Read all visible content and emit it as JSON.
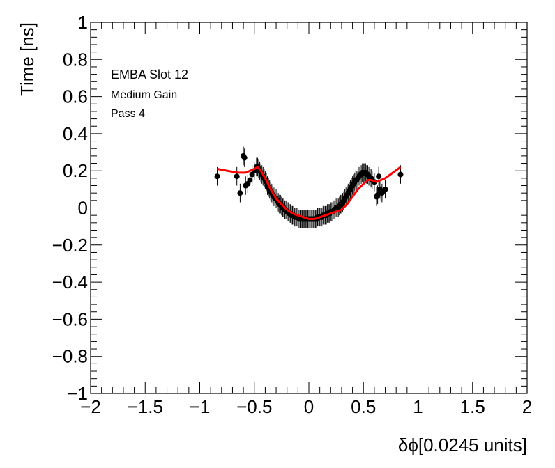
{
  "chart_data": {
    "type": "scatter",
    "title": "",
    "xlabel": "δϕ[0.0245 units]",
    "ylabel": "Time [ns]",
    "xlim": [
      -2,
      2
    ],
    "ylim": [
      -1,
      1
    ],
    "x_ticks": [
      -2,
      -1.5,
      -1,
      -0.5,
      0,
      0.5,
      1,
      1.5,
      2
    ],
    "x_tick_labels": [
      "−2",
      "−1.5",
      "−1",
      "−0.5",
      "0",
      "0.5",
      "1",
      "1.5",
      "2"
    ],
    "y_ticks": [
      -1,
      -0.8,
      -0.6,
      -0.4,
      -0.2,
      0,
      0.2,
      0.4,
      0.6,
      0.8,
      1
    ],
    "y_tick_labels": [
      "−1",
      "−0.8",
      "−0.6",
      "−0.4",
      "−0.2",
      "0",
      "0.2",
      "0.4",
      "0.6",
      "0.8",
      "1"
    ],
    "annotations": [
      "EMBA Slot 12",
      "Medium Gain",
      "Pass 4"
    ],
    "grid": false,
    "series": [
      {
        "kind": "points-with-errorbars",
        "color": "#000000",
        "error": 0.05,
        "x": [
          -0.84,
          -0.66,
          -0.63,
          -0.6,
          -0.59,
          -0.58,
          -0.56,
          -0.54,
          -0.52,
          -0.5,
          -0.48,
          -0.47,
          -0.46,
          -0.45,
          -0.44,
          -0.43,
          -0.42,
          -0.41,
          -0.4,
          -0.39,
          -0.38,
          -0.37,
          -0.36,
          -0.35,
          -0.34,
          -0.33,
          -0.32,
          -0.31,
          -0.3,
          -0.29,
          -0.28,
          -0.27,
          -0.26,
          -0.25,
          -0.24,
          -0.23,
          -0.22,
          -0.21,
          -0.2,
          -0.19,
          -0.18,
          -0.17,
          -0.16,
          -0.15,
          -0.14,
          -0.13,
          -0.12,
          -0.11,
          -0.1,
          -0.09,
          -0.08,
          -0.07,
          -0.06,
          -0.05,
          -0.04,
          -0.03,
          -0.02,
          -0.01,
          0,
          0.01,
          0.02,
          0.03,
          0.04,
          0.05,
          0.06,
          0.07,
          0.08,
          0.09,
          0.1,
          0.11,
          0.12,
          0.13,
          0.14,
          0.15,
          0.16,
          0.17,
          0.18,
          0.19,
          0.2,
          0.21,
          0.22,
          0.23,
          0.24,
          0.25,
          0.26,
          0.27,
          0.28,
          0.29,
          0.3,
          0.31,
          0.32,
          0.33,
          0.34,
          0.35,
          0.36,
          0.37,
          0.38,
          0.39,
          0.4,
          0.41,
          0.42,
          0.43,
          0.44,
          0.45,
          0.46,
          0.47,
          0.48,
          0.49,
          0.5,
          0.51,
          0.52,
          0.53,
          0.54,
          0.55,
          0.56,
          0.57,
          0.58,
          0.6,
          0.62,
          0.63,
          0.64,
          0.65,
          0.66,
          0.67,
          0.68,
          0.7,
          0.84
        ],
        "y": [
          0.17,
          0.17,
          0.08,
          0.28,
          0.27,
          0.12,
          0.13,
          0.15,
          0.18,
          0.2,
          0.22,
          0.22,
          0.21,
          0.2,
          0.19,
          0.18,
          0.17,
          0.16,
          0.15,
          0.14,
          0.12,
          0.11,
          0.1,
          0.09,
          0.08,
          0.07,
          0.06,
          0.05,
          0.05,
          0.04,
          0.03,
          0.02,
          0.02,
          0.01,
          0.0,
          0.0,
          -0.01,
          -0.01,
          -0.02,
          -0.02,
          -0.03,
          -0.03,
          -0.04,
          -0.04,
          -0.04,
          -0.05,
          -0.05,
          -0.05,
          -0.05,
          -0.06,
          -0.06,
          -0.06,
          -0.06,
          -0.06,
          -0.06,
          -0.06,
          -0.06,
          -0.06,
          -0.06,
          -0.06,
          -0.06,
          -0.06,
          -0.06,
          -0.06,
          -0.06,
          -0.06,
          -0.05,
          -0.05,
          -0.05,
          -0.05,
          -0.05,
          -0.04,
          -0.04,
          -0.04,
          -0.04,
          -0.03,
          -0.03,
          -0.03,
          -0.02,
          -0.02,
          -0.02,
          -0.01,
          -0.01,
          0.0,
          0.0,
          0.0,
          0.01,
          0.02,
          0.02,
          0.03,
          0.04,
          0.05,
          0.06,
          0.07,
          0.08,
          0.09,
          0.1,
          0.11,
          0.12,
          0.13,
          0.14,
          0.15,
          0.15,
          0.16,
          0.17,
          0.18,
          0.18,
          0.19,
          0.19,
          0.19,
          0.19,
          0.18,
          0.18,
          0.17,
          0.16,
          0.16,
          0.15,
          0.14,
          0.06,
          0.07,
          0.17,
          0.1,
          0.09,
          0.08,
          0.09,
          0.1,
          0.18
        ]
      },
      {
        "kind": "fit-line",
        "color": "#ff0000",
        "x": [
          -0.84,
          -0.75,
          -0.65,
          -0.58,
          -0.54,
          -0.5,
          -0.47,
          -0.44,
          -0.4,
          -0.35,
          -0.3,
          -0.25,
          -0.2,
          -0.15,
          -0.1,
          -0.05,
          0,
          0.05,
          0.1,
          0.15,
          0.2,
          0.25,
          0.3,
          0.35,
          0.4,
          0.45,
          0.5,
          0.54,
          0.57,
          0.62,
          0.7,
          0.77,
          0.84
        ],
        "y": [
          0.21,
          0.2,
          0.19,
          0.19,
          0.2,
          0.21,
          0.22,
          0.2,
          0.16,
          0.1,
          0.05,
          0.02,
          -0.01,
          -0.03,
          -0.04,
          -0.05,
          -0.06,
          -0.06,
          -0.05,
          -0.04,
          -0.03,
          -0.02,
          -0.01,
          0.02,
          0.06,
          0.1,
          0.13,
          0.15,
          0.15,
          0.14,
          0.16,
          0.19,
          0.22
        ]
      }
    ]
  }
}
